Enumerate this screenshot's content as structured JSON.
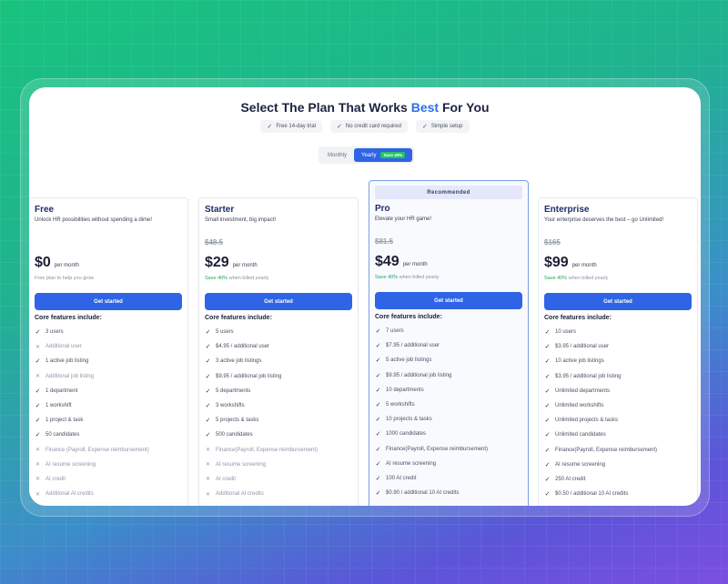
{
  "headline": {
    "prefix": "Select The Plan That Works",
    "accent": "Best",
    "suffix": "For You"
  },
  "perks": [
    "Free 14-day trial",
    "No credit card required",
    "Simple setup"
  ],
  "billing_toggle": {
    "monthly": "Monthly",
    "yearly": "Yearly",
    "save_badge": "Save 40%",
    "selected": "Yearly"
  },
  "core_label": "Core features include:",
  "cta_label": "Get started",
  "per_month": "per month",
  "recommended_label": "Recommended",
  "plans": [
    {
      "name": "Free",
      "tagline": "Unlock HR possibilities without spending a dime!",
      "old_price": "",
      "price": "$0",
      "note_green": "",
      "note": "Free plan to help you grow",
      "features": [
        {
          "text": "3 users",
          "included": true
        },
        {
          "text": "Additional user",
          "included": false
        },
        {
          "text": "1 active job listing",
          "included": true
        },
        {
          "text": "Additional job listing",
          "included": false
        },
        {
          "text": "1 department",
          "included": true
        },
        {
          "text": "1 workshift",
          "included": true
        },
        {
          "text": "1 project & task",
          "included": true
        },
        {
          "text": "50 candidates",
          "included": true
        },
        {
          "text": "Finance (Payroll, Expense reimbursement)",
          "included": false
        },
        {
          "text": "AI resume screening",
          "included": false
        },
        {
          "text": "AI credit",
          "included": false
        },
        {
          "text": "Additional AI credits",
          "included": false
        }
      ]
    },
    {
      "name": "Starter",
      "tagline": "Small investment, big impact!",
      "old_price": "$48.5",
      "price": "$29",
      "note_green": "Save 40%",
      "note": "when billed yearly",
      "features": [
        {
          "text": "5 users",
          "included": true
        },
        {
          "text": "$4.95 / additional user",
          "included": true
        },
        {
          "text": "3 active job listings",
          "included": true
        },
        {
          "text": "$9.95 / additional job listing",
          "included": true
        },
        {
          "text": "5 departments",
          "included": true
        },
        {
          "text": "3 workshifts",
          "included": true
        },
        {
          "text": "5 projects & tasks",
          "included": true
        },
        {
          "text": "500 candidates",
          "included": true
        },
        {
          "text": "Finance(Payroll, Expense reimbursement)",
          "included": false
        },
        {
          "text": "AI resume screening",
          "included": false
        },
        {
          "text": "AI credit",
          "included": false
        },
        {
          "text": "Additional AI credits",
          "included": false
        }
      ]
    },
    {
      "name": "Pro",
      "tagline": "Elevate your HR game!",
      "old_price": "$81.5",
      "price": "$49",
      "note_green": "Save 40%",
      "note": "when billed yearly",
      "features": [
        {
          "text": "7 users",
          "included": true
        },
        {
          "text": "$7.95 / additional user",
          "included": true
        },
        {
          "text": "5 active job listings",
          "included": true
        },
        {
          "text": "$9.95 / additional job listing",
          "included": true
        },
        {
          "text": "10 departments",
          "included": true
        },
        {
          "text": "5 workshifts",
          "included": true
        },
        {
          "text": "10 projects & tasks",
          "included": true
        },
        {
          "text": "1000 candidates",
          "included": true
        },
        {
          "text": "Finance(Payroll, Expense reimbursement)",
          "included": true
        },
        {
          "text": "AI resume screening",
          "included": true
        },
        {
          "text": "100 AI credit",
          "included": true
        },
        {
          "text": "$0.90 / additional 10 AI credits",
          "included": true
        }
      ]
    },
    {
      "name": "Enterprise",
      "tagline": "Your enterprise deserves the best – go Unlimited!",
      "old_price": "$165",
      "price": "$99",
      "note_green": "Save 40%",
      "note": "when billed yearly",
      "features": [
        {
          "text": "10 users",
          "included": true
        },
        {
          "text": "$3.95 / additional user",
          "included": true
        },
        {
          "text": "10 active job listings",
          "included": true
        },
        {
          "text": "$3.95 / additional job listing",
          "included": true
        },
        {
          "text": "Unlimited departments",
          "included": true
        },
        {
          "text": "Unlimited workshifts",
          "included": true
        },
        {
          "text": "Unlimited projects & tasks",
          "included": true
        },
        {
          "text": "Unlimited candidates",
          "included": true
        },
        {
          "text": "Finance(Payroll, Expense reimbursement)",
          "included": true
        },
        {
          "text": "AI resume screening",
          "included": true
        },
        {
          "text": "250 AI credit",
          "included": true
        },
        {
          "text": "$0.50 / additional 10 AI credits",
          "included": true
        }
      ]
    }
  ],
  "colors": {
    "accent": "#2f64e6",
    "save_green": "#22c55e",
    "plan_title": "#1d2d6b"
  }
}
